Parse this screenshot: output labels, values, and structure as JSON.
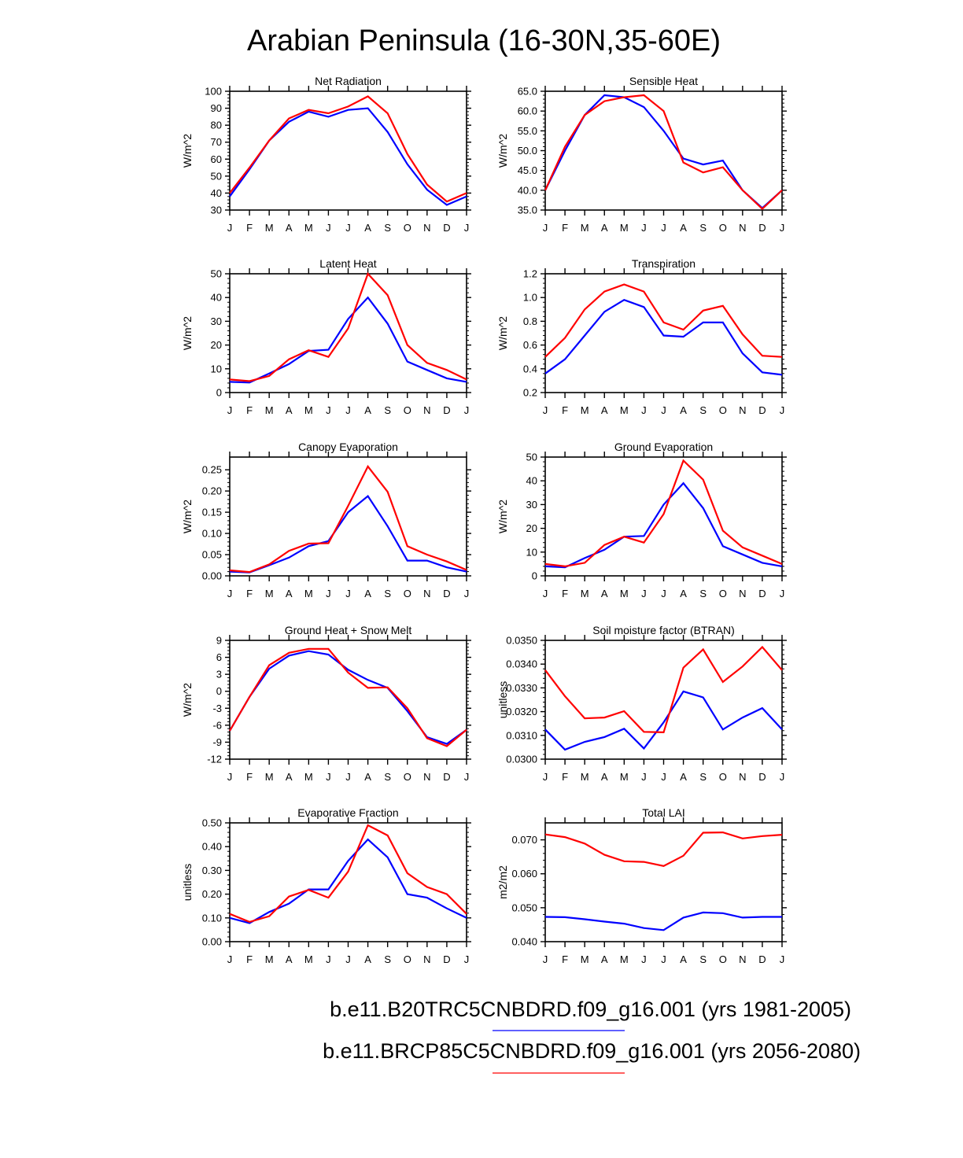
{
  "figure": {
    "title": "Arabian Peninsula (16-30N,35-60E)",
    "series_colors": {
      "historical": "#0000ff",
      "future": "#ff0000"
    }
  },
  "legend": [
    {
      "name": "b.e11.B20TRC5CNBDRD.f09_g16.001 (yrs 1981-2005)",
      "color": "#0000ff"
    },
    {
      "name": "b.e11.BRCP85C5CNBDRD.f09_g16.001 (yrs 2056-2080)",
      "color": "#ff0000"
    }
  ],
  "chart_data": [
    {
      "id": "net-radiation",
      "type": "line",
      "title": "Net Radiation",
      "ylabel": "W/m^2",
      "categories": [
        "J",
        "F",
        "M",
        "A",
        "M",
        "J",
        "J",
        "A",
        "S",
        "O",
        "N",
        "D",
        "J"
      ],
      "ylim": [
        30,
        100
      ],
      "yticks": [
        30,
        40,
        50,
        60,
        70,
        80,
        90,
        100
      ],
      "ytick_labels": [
        "30",
        "40",
        "50",
        "60",
        "70",
        "80",
        "90",
        "100"
      ],
      "series": [
        {
          "name": "b.e11.B20TRC5CNBDRD.f09_g16.001 (yrs 1981-2005)",
          "color": "#0000ff",
          "values": [
            38,
            54,
            71,
            82,
            88,
            85,
            89,
            90,
            76,
            57,
            42,
            33,
            38
          ]
        },
        {
          "name": "b.e11.BRCP85C5CNBDRD.f09_g16.001 (yrs 2056-2080)",
          "color": "#ff0000",
          "values": [
            40,
            55,
            71,
            84,
            89,
            87,
            91,
            97,
            87,
            63,
            45,
            35,
            40
          ]
        }
      ]
    },
    {
      "id": "sensible-heat",
      "type": "line",
      "title": "Sensible Heat",
      "ylabel": "W/m^2",
      "categories": [
        "J",
        "F",
        "M",
        "A",
        "M",
        "J",
        "J",
        "A",
        "S",
        "O",
        "N",
        "D",
        "J"
      ],
      "ylim": [
        35,
        65
      ],
      "yticks": [
        35,
        40,
        45,
        50,
        55,
        60,
        65
      ],
      "ytick_labels": [
        "35.0",
        "40.0",
        "45.0",
        "50.0",
        "55.0",
        "60.0",
        "65.0"
      ],
      "series": [
        {
          "name": "b.e11.B20TRC5CNBDRD.f09_g16.001 (yrs 1981-2005)",
          "color": "#0000ff",
          "values": [
            40,
            50,
            59,
            64,
            63.5,
            61,
            55,
            48,
            46.5,
            47.5,
            40,
            35.5,
            40
          ]
        },
        {
          "name": "b.e11.BRCP85C5CNBDRD.f09_g16.001 (yrs 2056-2080)",
          "color": "#ff0000",
          "values": [
            40,
            51,
            59,
            62.5,
            63.5,
            64,
            60,
            47,
            44.5,
            45.8,
            40,
            35.3,
            40
          ]
        }
      ]
    },
    {
      "id": "latent-heat",
      "type": "line",
      "title": "Latent Heat",
      "ylabel": "W/m^2",
      "categories": [
        "J",
        "F",
        "M",
        "A",
        "M",
        "J",
        "J",
        "A",
        "S",
        "O",
        "N",
        "D",
        "J"
      ],
      "ylim": [
        0,
        50
      ],
      "yticks": [
        0,
        10,
        20,
        30,
        40,
        50
      ],
      "ytick_labels": [
        "0",
        "10",
        "20",
        "30",
        "40",
        "50"
      ],
      "series": [
        {
          "name": "b.e11.B20TRC5CNBDRD.f09_g16.001 (yrs 1981-2005)",
          "color": "#0000ff",
          "values": [
            4.5,
            4.2,
            8,
            12,
            17.5,
            18,
            31,
            40,
            29,
            13,
            9.5,
            6,
            4.5
          ]
        },
        {
          "name": "b.e11.BRCP85C5CNBDRD.f09_g16.001 (yrs 2056-2080)",
          "color": "#ff0000",
          "values": [
            5.5,
            4.8,
            7,
            14,
            17.8,
            15,
            27,
            50,
            41,
            20,
            12.5,
            9.5,
            5.5
          ]
        }
      ]
    },
    {
      "id": "transpiration",
      "type": "line",
      "title": "Transpiration",
      "ylabel": "W/m^2",
      "categories": [
        "J",
        "F",
        "M",
        "A",
        "M",
        "J",
        "J",
        "A",
        "S",
        "O",
        "N",
        "D",
        "J"
      ],
      "ylim": [
        0.2,
        1.2
      ],
      "yticks": [
        0.2,
        0.4,
        0.6,
        0.8,
        1.0,
        1.2
      ],
      "ytick_labels": [
        "0.2",
        "0.4",
        "0.6",
        "0.8",
        "1.0",
        "1.2"
      ],
      "series": [
        {
          "name": "b.e11.B20TRC5CNBDRD.f09_g16.001 (yrs 1981-2005)",
          "color": "#0000ff",
          "values": [
            0.36,
            0.48,
            0.68,
            0.88,
            0.98,
            0.92,
            0.68,
            0.67,
            0.79,
            0.79,
            0.53,
            0.37,
            0.35
          ]
        },
        {
          "name": "b.e11.BRCP85C5CNBDRD.f09_g16.001 (yrs 2056-2080)",
          "color": "#ff0000",
          "values": [
            0.5,
            0.66,
            0.9,
            1.05,
            1.11,
            1.05,
            0.79,
            0.73,
            0.89,
            0.93,
            0.69,
            0.51,
            0.5
          ]
        }
      ]
    },
    {
      "id": "canopy-evaporation",
      "type": "line",
      "title": "Canopy Evaporation",
      "ylabel": "W/m^2",
      "categories": [
        "J",
        "F",
        "M",
        "A",
        "M",
        "J",
        "J",
        "A",
        "S",
        "O",
        "N",
        "D",
        "J"
      ],
      "ylim": [
        0,
        0.28
      ],
      "yticks": [
        0,
        0.05,
        0.1,
        0.15,
        0.2,
        0.25
      ],
      "ytick_labels": [
        "0.00",
        "0.05",
        "0.10",
        "0.15",
        "0.20",
        "0.25"
      ],
      "series": [
        {
          "name": "b.e11.B20TRC5CNBDRD.f09_g16.001 (yrs 1981-2005)",
          "color": "#0000ff",
          "values": [
            0.01,
            0.008,
            0.025,
            0.043,
            0.07,
            0.082,
            0.15,
            0.188,
            0.117,
            0.036,
            0.036,
            0.02,
            0.01
          ]
        },
        {
          "name": "b.e11.BRCP85C5CNBDRD.f09_g16.001 (yrs 2056-2080)",
          "color": "#ff0000",
          "values": [
            0.013,
            0.009,
            0.027,
            0.059,
            0.076,
            0.077,
            0.165,
            0.258,
            0.198,
            0.07,
            0.05,
            0.034,
            0.014
          ]
        }
      ]
    },
    {
      "id": "ground-evaporation",
      "type": "line",
      "title": "Ground Evaporation",
      "ylabel": "W/m^2",
      "categories": [
        "J",
        "F",
        "M",
        "A",
        "M",
        "J",
        "J",
        "A",
        "S",
        "O",
        "N",
        "D",
        "J"
      ],
      "ylim": [
        0,
        50
      ],
      "yticks": [
        0,
        10,
        20,
        30,
        40,
        50
      ],
      "ytick_labels": [
        "0",
        "10",
        "20",
        "30",
        "40",
        "50"
      ],
      "series": [
        {
          "name": "b.e11.B20TRC5CNBDRD.f09_g16.001 (yrs 1981-2005)",
          "color": "#0000ff",
          "values": [
            4,
            3.6,
            7.5,
            11,
            16.5,
            16.8,
            30,
            39,
            28.5,
            12.5,
            9,
            5.5,
            4
          ]
        },
        {
          "name": "b.e11.BRCP85C5CNBDRD.f09_g16.001 (yrs 2056-2080)",
          "color": "#ff0000",
          "values": [
            5,
            4,
            5.5,
            13,
            16.5,
            14,
            26,
            48.5,
            40.5,
            19,
            12,
            8.5,
            5
          ]
        }
      ]
    },
    {
      "id": "ground-heat-snow-melt",
      "type": "line",
      "title": "Ground Heat + Snow Melt",
      "ylabel": "W/m^2",
      "categories": [
        "J",
        "F",
        "M",
        "A",
        "M",
        "J",
        "J",
        "A",
        "S",
        "O",
        "N",
        "D",
        "J"
      ],
      "ylim": [
        -12,
        9
      ],
      "yticks": [
        -12,
        -9,
        -6,
        -3,
        0,
        3,
        6,
        9
      ],
      "ytick_labels": [
        "-12",
        "-9",
        "-6",
        "-3",
        "0",
        "3",
        "6",
        "9"
      ],
      "series": [
        {
          "name": "b.e11.B20TRC5CNBDRD.f09_g16.001 (yrs 1981-2005)",
          "color": "#0000ff",
          "values": [
            -7,
            -1,
            4,
            6.3,
            7.1,
            6.5,
            3.8,
            2,
            0.6,
            -3.5,
            -8.1,
            -9.3,
            -6.8
          ]
        },
        {
          "name": "b.e11.BRCP85C5CNBDRD.f09_g16.001 (yrs 2056-2080)",
          "color": "#ff0000",
          "values": [
            -7,
            -1,
            4.6,
            6.8,
            7.5,
            7.5,
            3.3,
            0.6,
            0.7,
            -3,
            -8.3,
            -9.7,
            -6.8
          ]
        }
      ]
    },
    {
      "id": "soil-moisture-factor",
      "type": "line",
      "title": "Soil moisture factor (BTRAN)",
      "ylabel": "unitless",
      "categories": [
        "J",
        "F",
        "M",
        "A",
        "M",
        "J",
        "J",
        "A",
        "S",
        "O",
        "N",
        "D",
        "J"
      ],
      "ylim": [
        0.03,
        0.035
      ],
      "yticks": [
        0.03,
        0.031,
        0.032,
        0.033,
        0.034,
        0.035
      ],
      "ytick_labels": [
        "0.0300",
        "0.0310",
        "0.0320",
        "0.0330",
        "0.0340",
        "0.0350"
      ],
      "series": [
        {
          "name": "b.e11.B20TRC5CNBDRD.f09_g16.001 (yrs 1981-2005)",
          "color": "#0000ff",
          "values": [
            0.03125,
            0.0304,
            0.03073,
            0.03093,
            0.03128,
            0.03045,
            0.03155,
            0.03285,
            0.0326,
            0.03125,
            0.03175,
            0.03215,
            0.03125
          ]
        },
        {
          "name": "b.e11.BRCP85C5CNBDRD.f09_g16.001 (yrs 2056-2080)",
          "color": "#ff0000",
          "values": [
            0.03375,
            0.03265,
            0.03172,
            0.03175,
            0.03202,
            0.03115,
            0.03113,
            0.03385,
            0.03462,
            0.03325,
            0.0339,
            0.03472,
            0.03375
          ]
        }
      ]
    },
    {
      "id": "evaporative-fraction",
      "type": "line",
      "title": "Evaporative Fraction",
      "ylabel": "unitless",
      "categories": [
        "J",
        "F",
        "M",
        "A",
        "M",
        "J",
        "J",
        "A",
        "S",
        "O",
        "N",
        "D",
        "J"
      ],
      "ylim": [
        0,
        0.5
      ],
      "yticks": [
        0,
        0.1,
        0.2,
        0.3,
        0.4,
        0.5
      ],
      "ytick_labels": [
        "0.00",
        "0.10",
        "0.20",
        "0.30",
        "0.40",
        "0.50"
      ],
      "series": [
        {
          "name": "b.e11.B20TRC5CNBDRD.f09_g16.001 (yrs 1981-2005)",
          "color": "#0000ff",
          "values": [
            0.1,
            0.078,
            0.125,
            0.16,
            0.22,
            0.22,
            0.34,
            0.43,
            0.355,
            0.2,
            0.185,
            0.14,
            0.1
          ]
        },
        {
          "name": "b.e11.BRCP85C5CNBDRD.f09_g16.001 (yrs 2056-2080)",
          "color": "#ff0000",
          "values": [
            0.117,
            0.083,
            0.107,
            0.19,
            0.218,
            0.185,
            0.295,
            0.49,
            0.447,
            0.288,
            0.23,
            0.2,
            0.117
          ]
        }
      ]
    },
    {
      "id": "total-lai",
      "type": "line",
      "title": "Total LAI",
      "ylabel": "m2/m2",
      "categories": [
        "J",
        "F",
        "M",
        "A",
        "M",
        "J",
        "J",
        "A",
        "S",
        "O",
        "N",
        "D",
        "J"
      ],
      "ylim": [
        0.04,
        0.075
      ],
      "yticks": [
        0.04,
        0.05,
        0.06,
        0.07
      ],
      "ytick_labels": [
        "0.040",
        "0.050",
        "0.060",
        "0.070"
      ],
      "series": [
        {
          "name": "b.e11.B20TRC5CNBDRD.f09_g16.001 (yrs 1981-2005)",
          "color": "#0000ff",
          "values": [
            0.0473,
            0.0472,
            0.0466,
            0.0459,
            0.0453,
            0.044,
            0.0434,
            0.0471,
            0.0486,
            0.0484,
            0.0471,
            0.0473,
            0.0473
          ]
        },
        {
          "name": "b.e11.BRCP85C5CNBDRD.f09_g16.001 (yrs 2056-2080)",
          "color": "#ff0000",
          "values": [
            0.0716,
            0.0708,
            0.0689,
            0.0656,
            0.0637,
            0.0635,
            0.0623,
            0.0653,
            0.0721,
            0.0722,
            0.0704,
            0.0711,
            0.0715
          ]
        }
      ]
    }
  ]
}
